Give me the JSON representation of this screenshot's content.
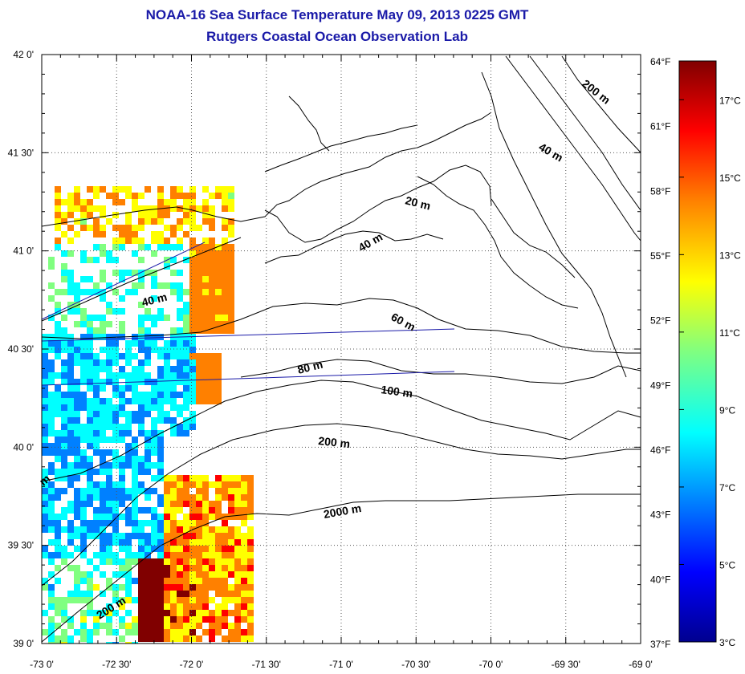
{
  "header": {
    "title": "NOAA-16 Sea Surface Temperature May 09, 2013 0225 GMT",
    "subtitle": "Rutgers Coastal Ocean Observation Lab"
  },
  "map": {
    "lon_range": [
      -73.0,
      -69.0
    ],
    "lat_range": [
      39.0,
      42.0
    ],
    "lat_ticks": [
      "39 0'",
      "39 30'",
      "40 0'",
      "40 30'",
      "41 0'",
      "41 30'",
      "42 0'"
    ],
    "lon_ticks": [
      "-73 0'",
      "-72 30'",
      "-72 0'",
      "-71 30'",
      "-71 0'",
      "-70 30'",
      "-70 0'",
      "-69 30'",
      "-69 0'"
    ],
    "fahrenheit_ticks": [
      "37°F",
      "40°F",
      "43°F",
      "46°F",
      "49°F",
      "52°F",
      "55°F",
      "58°F",
      "61°F",
      "64°F"
    ],
    "contour_labels": [
      "200 m",
      "40 m",
      "20 m",
      "40 m",
      "40 m",
      "60 m",
      "80 m",
      "100 m",
      "200 m",
      "2000 m",
      "200 m",
      "m"
    ]
  },
  "colorbar": {
    "range_c": [
      3,
      18
    ],
    "celsius_ticks": [
      "17°C",
      "15°C",
      "13°C",
      "11°C",
      "9°C",
      "7°C",
      "5°C",
      "3°C"
    ],
    "colors": [
      "#00008f",
      "#0000ff",
      "#0080ff",
      "#00ffff",
      "#80ff80",
      "#ffff00",
      "#ff8000",
      "#ff0000",
      "#800000"
    ]
  }
}
